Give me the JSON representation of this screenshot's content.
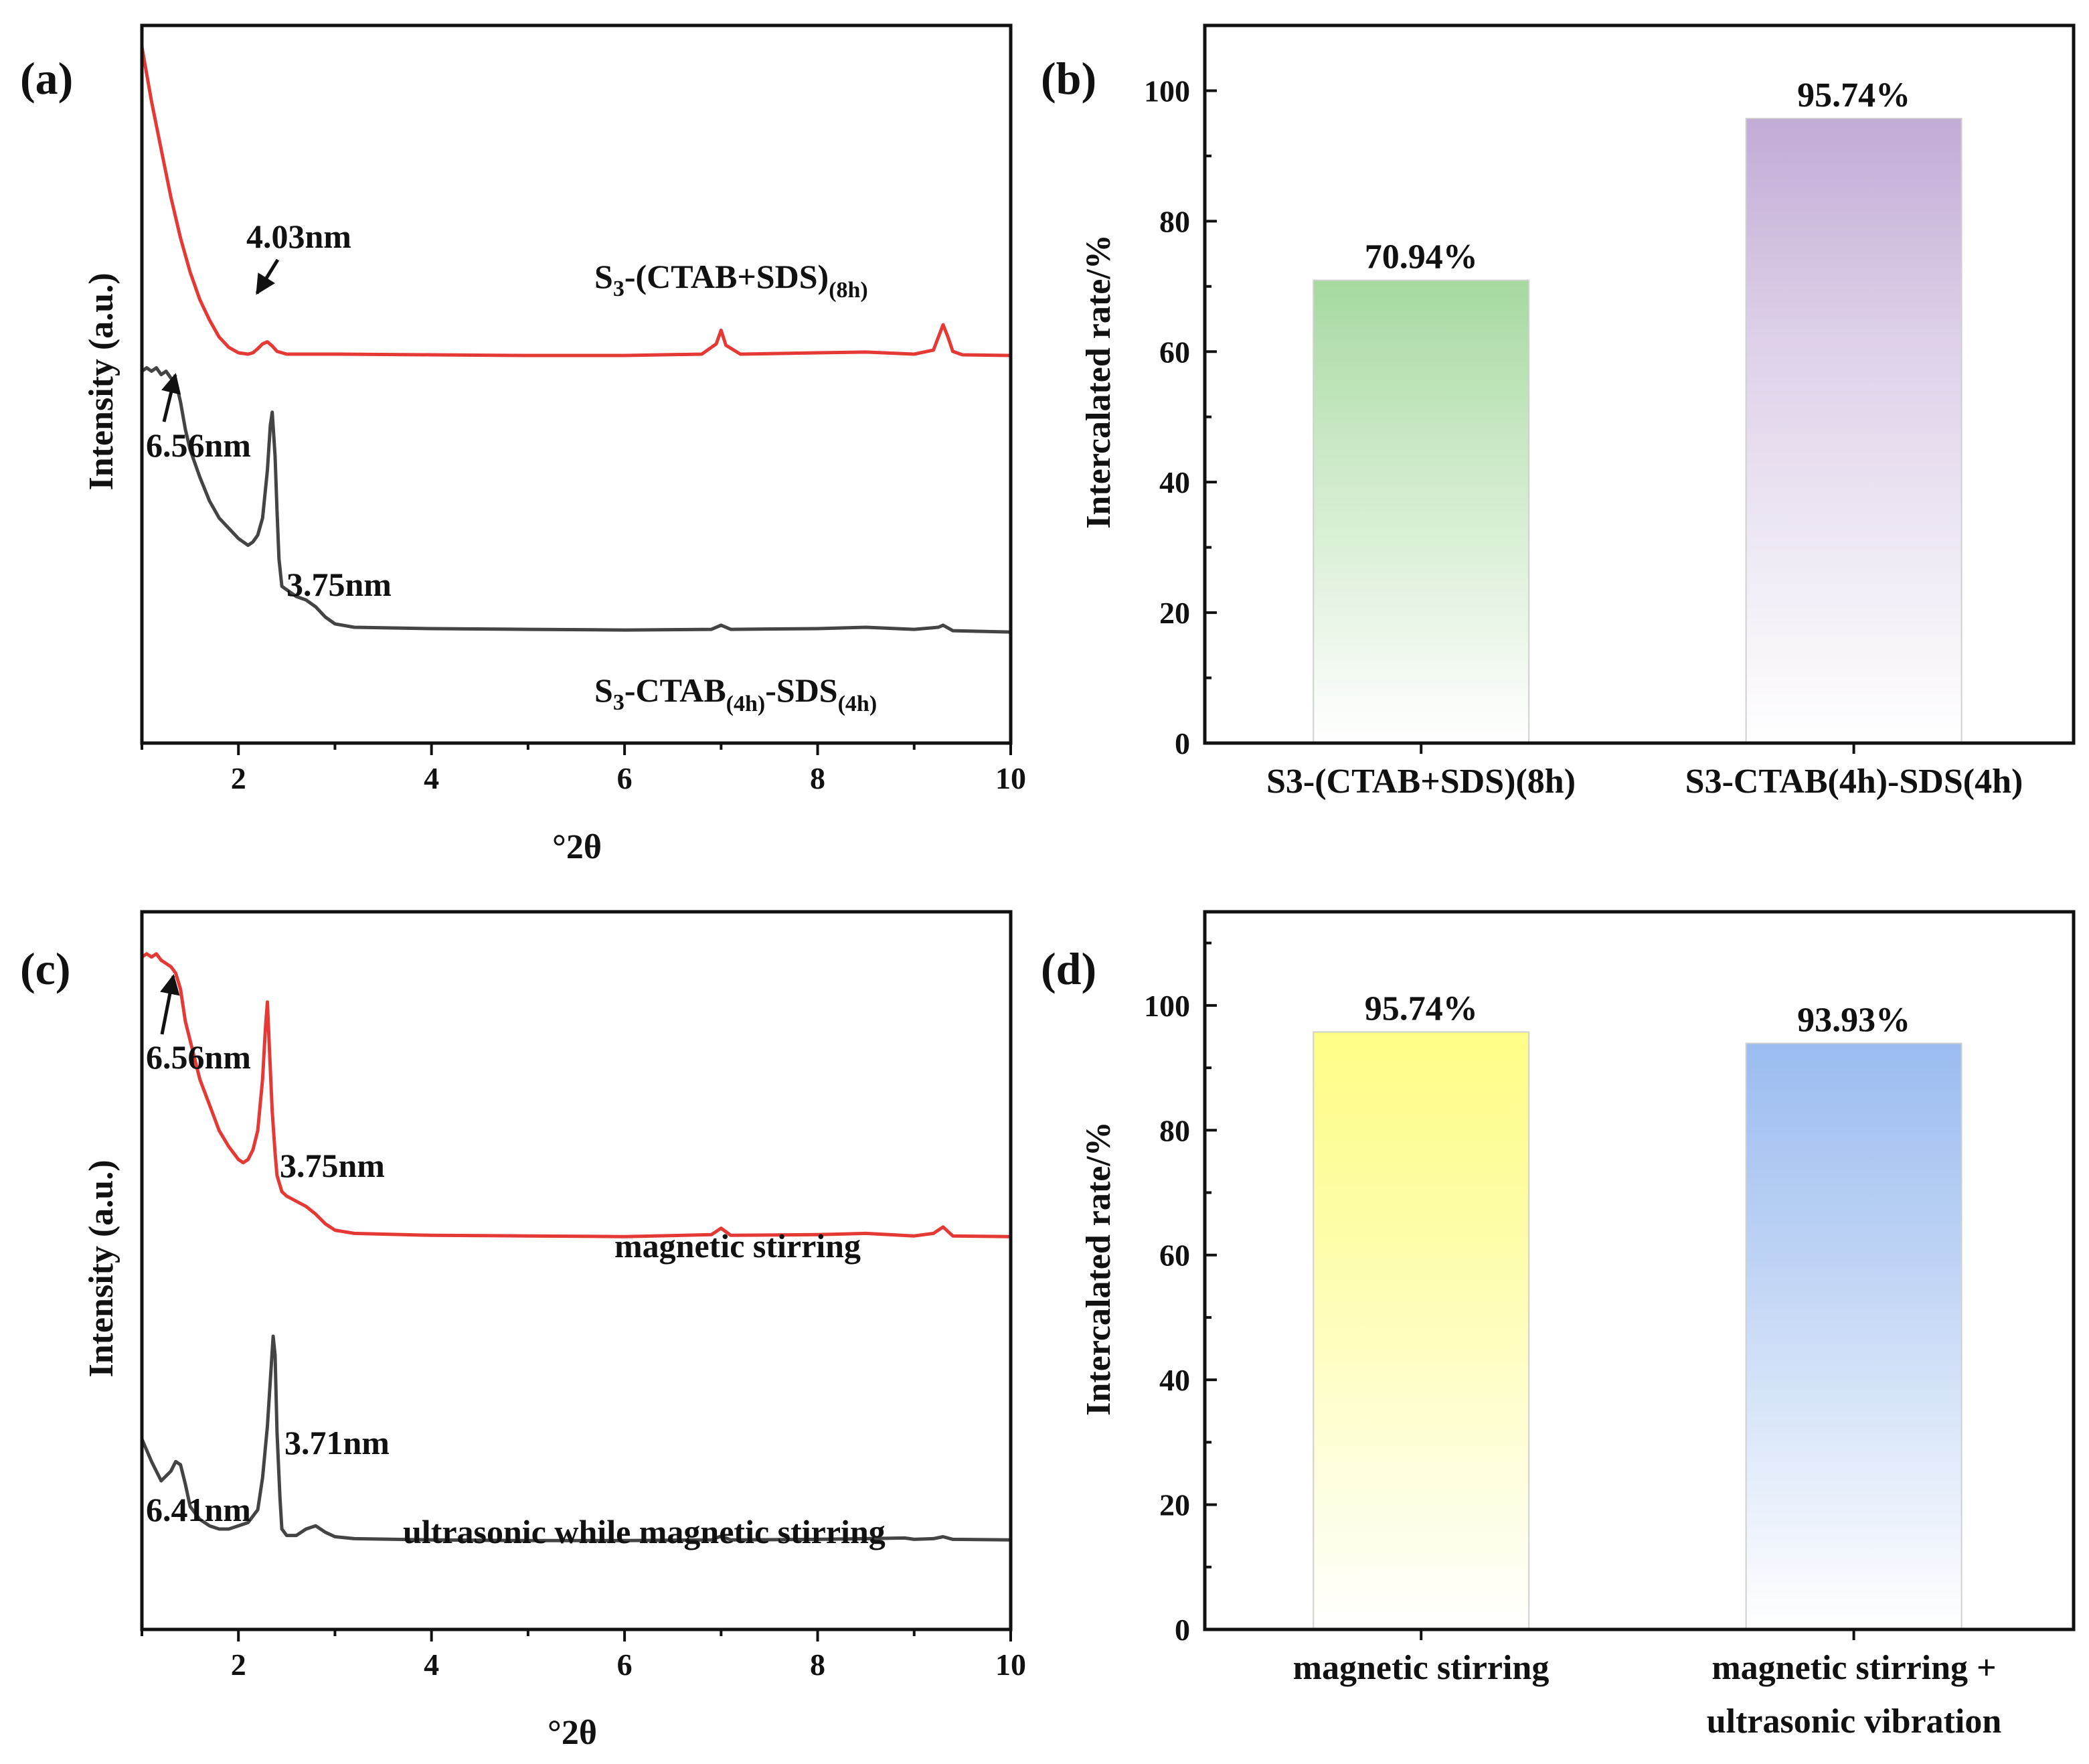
{
  "chart_data": [
    {
      "panel": "(a)",
      "type": "line",
      "xlabel": "°2θ",
      "ylabel": "Intensity (a.u.)",
      "xlim": [
        1,
        10
      ],
      "xticks": [
        2,
        4,
        6,
        8,
        10
      ],
      "x_tick_labels": [
        "2",
        "4",
        "6",
        "8",
        "10"
      ],
      "y_unit": "arbitrary (relative, 0-100)",
      "series": [
        {
          "name": "S3-(CTAB+SDS)(8h)",
          "label_parts": [
            "S",
            "3",
            "-(CTAB+SDS)",
            "(8h)",
            "",
            ""
          ],
          "color": "#e53935",
          "x": [
            1.0,
            1.1,
            1.2,
            1.3,
            1.4,
            1.5,
            1.6,
            1.7,
            1.8,
            1.9,
            2.0,
            2.1,
            2.15,
            2.2,
            2.25,
            2.3,
            2.35,
            2.4,
            2.5,
            3.0,
            4.0,
            5.0,
            6.0,
            6.8,
            6.95,
            7.0,
            7.05,
            7.2,
            8.0,
            8.5,
            9.0,
            9.2,
            9.3,
            9.35,
            9.4,
            9.5,
            10.0
          ],
          "y": [
            100,
            92,
            85,
            78,
            72,
            67,
            63,
            60,
            57.5,
            56,
            55.2,
            55.0,
            55.2,
            55.8,
            56.5,
            56.8,
            56.2,
            55.4,
            55.0,
            55.0,
            54.9,
            54.8,
            54.8,
            55.0,
            56.5,
            58.5,
            56.3,
            55.0,
            55.2,
            55.3,
            55.0,
            55.6,
            59.3,
            57.5,
            55.4,
            54.9,
            54.8
          ]
        },
        {
          "name": "S3-CTAB(4h)-SDS(4h)",
          "label_parts": [
            "S",
            "3",
            "-CTAB",
            "(4h)",
            "-SDS",
            "(4h)"
          ],
          "color": "#444444",
          "x": [
            1.0,
            1.05,
            1.1,
            1.15,
            1.2,
            1.25,
            1.3,
            1.35,
            1.4,
            1.45,
            1.5,
            1.6,
            1.7,
            1.8,
            1.9,
            2.0,
            2.05,
            2.1,
            2.15,
            2.2,
            2.25,
            2.3,
            2.33,
            2.35,
            2.38,
            2.4,
            2.42,
            2.45,
            2.5,
            2.6,
            2.7,
            2.8,
            2.9,
            3.0,
            3.2,
            4.0,
            5.0,
            6.0,
            6.9,
            7.0,
            7.1,
            8.0,
            8.5,
            9.0,
            9.25,
            9.3,
            9.4,
            10.0
          ],
          "y": [
            52.5,
            53.0,
            52.5,
            53.0,
            52.0,
            52.5,
            51.5,
            51.0,
            48.0,
            44.0,
            41.0,
            37.0,
            33.5,
            31.0,
            29.5,
            28.0,
            27.5,
            27.0,
            27.5,
            28.5,
            31.0,
            38.0,
            44.5,
            46.5,
            40.0,
            32.0,
            25.0,
            21.0,
            20.5,
            19.5,
            19.0,
            18.0,
            16.5,
            15.5,
            15.0,
            14.8,
            14.7,
            14.6,
            14.7,
            15.3,
            14.7,
            14.8,
            15.0,
            14.7,
            15.0,
            15.3,
            14.5,
            14.3
          ]
        }
      ],
      "annotations": [
        "4.03nm",
        "6.56nm",
        "3.75nm"
      ]
    },
    {
      "panel": "(b)",
      "type": "bar",
      "ylabel": "Intercalated rate/%",
      "ylim": [
        0,
        110
      ],
      "yticks": [
        0,
        20,
        40,
        60,
        80,
        100
      ],
      "y_tick_labels": [
        "0",
        "20",
        "40",
        "60",
        "80",
        "100"
      ],
      "categories": [
        "S3-(CTAB+SDS)(8h)",
        "S3-CTAB(4h)-SDS(4h)"
      ],
      "values": [
        70.94,
        95.74
      ],
      "value_labels": [
        "70.94%",
        "95.74%"
      ],
      "colors": [
        "#a6d9a0",
        "#c2abd6"
      ]
    },
    {
      "panel": "(c)",
      "type": "line",
      "xlabel": "°2θ",
      "ylabel": "Intensity (a.u.)",
      "xlim": [
        1,
        10
      ],
      "xticks": [
        2,
        4,
        6,
        8,
        10
      ],
      "x_tick_labels": [
        "2",
        "4",
        "6",
        "8",
        "10"
      ],
      "y_unit": "arbitrary (relative, 0-100)",
      "series": [
        {
          "name": "magnetic stirring",
          "color": "#e53935",
          "x": [
            1.0,
            1.05,
            1.1,
            1.15,
            1.2,
            1.25,
            1.3,
            1.35,
            1.4,
            1.45,
            1.5,
            1.6,
            1.7,
            1.8,
            1.9,
            2.0,
            2.05,
            2.1,
            2.15,
            2.2,
            2.25,
            2.28,
            2.3,
            2.32,
            2.35,
            2.38,
            2.4,
            2.45,
            2.5,
            2.6,
            2.7,
            2.8,
            2.9,
            3.0,
            3.2,
            4.0,
            5.0,
            6.0,
            6.9,
            7.0,
            7.1,
            8.0,
            8.5,
            9.0,
            9.2,
            9.3,
            9.4,
            10.0
          ],
          "y": [
            99.0,
            99.5,
            99.0,
            99.5,
            98.5,
            98.0,
            97.5,
            96.5,
            94.0,
            89.0,
            86.0,
            80.0,
            76.0,
            72.0,
            69.5,
            67.5,
            67.0,
            67.5,
            69.0,
            72.0,
            80.0,
            88.0,
            92.0,
            85.0,
            75.0,
            68.5,
            65.0,
            62.5,
            61.8,
            61.0,
            60.2,
            59.0,
            57.5,
            56.5,
            56.0,
            55.7,
            55.6,
            55.5,
            55.8,
            56.8,
            55.7,
            55.8,
            56.0,
            55.6,
            56.0,
            57.0,
            55.6,
            55.5
          ]
        },
        {
          "name": "ultrasonic while magnetic stirring",
          "color": "#444444",
          "x": [
            1.0,
            1.1,
            1.2,
            1.3,
            1.35,
            1.4,
            1.45,
            1.5,
            1.6,
            1.7,
            1.8,
            1.9,
            2.0,
            2.1,
            2.2,
            2.25,
            2.3,
            2.33,
            2.36,
            2.38,
            2.4,
            2.43,
            2.45,
            2.5,
            2.6,
            2.7,
            2.8,
            2.9,
            3.0,
            3.2,
            4.0,
            5.0,
            6.0,
            6.9,
            7.0,
            7.1,
            8.0,
            8.5,
            8.9,
            9.0,
            9.2,
            9.3,
            9.4,
            10.0
          ],
          "y": [
            24.0,
            20.5,
            17.5,
            19.0,
            20.5,
            20.0,
            17.0,
            13.5,
            11.5,
            10.5,
            10.0,
            10.0,
            10.5,
            11.0,
            13.0,
            18.0,
            26.0,
            33.0,
            40.0,
            37.0,
            25.0,
            15.0,
            10.0,
            9.0,
            9.0,
            10.0,
            10.5,
            9.5,
            8.8,
            8.5,
            8.3,
            8.2,
            8.2,
            8.3,
            8.9,
            8.3,
            8.4,
            8.5,
            8.6,
            8.4,
            8.5,
            8.8,
            8.4,
            8.3
          ]
        }
      ],
      "annotations": [
        "6.56nm",
        "3.75nm",
        "6.41nm",
        "3.71nm"
      ]
    },
    {
      "panel": "(d)",
      "type": "bar",
      "ylabel": "Intercalated rate/%",
      "ylim": [
        0,
        115
      ],
      "yticks": [
        0,
        20,
        40,
        60,
        80,
        100
      ],
      "y_tick_labels": [
        "0",
        "20",
        "40",
        "60",
        "80",
        "100"
      ],
      "categories": [
        "magnetic stirring",
        "magnetic stirring + ultrasonic vibration"
      ],
      "category_lines": [
        [
          "magnetic stirring"
        ],
        [
          "magnetic stirring +",
          "ultrasonic vibration"
        ]
      ],
      "values": [
        95.74,
        93.93
      ],
      "value_labels": [
        "95.74%",
        "93.93%"
      ],
      "colors": [
        "#fdfd86",
        "#9bbcf0"
      ]
    }
  ]
}
